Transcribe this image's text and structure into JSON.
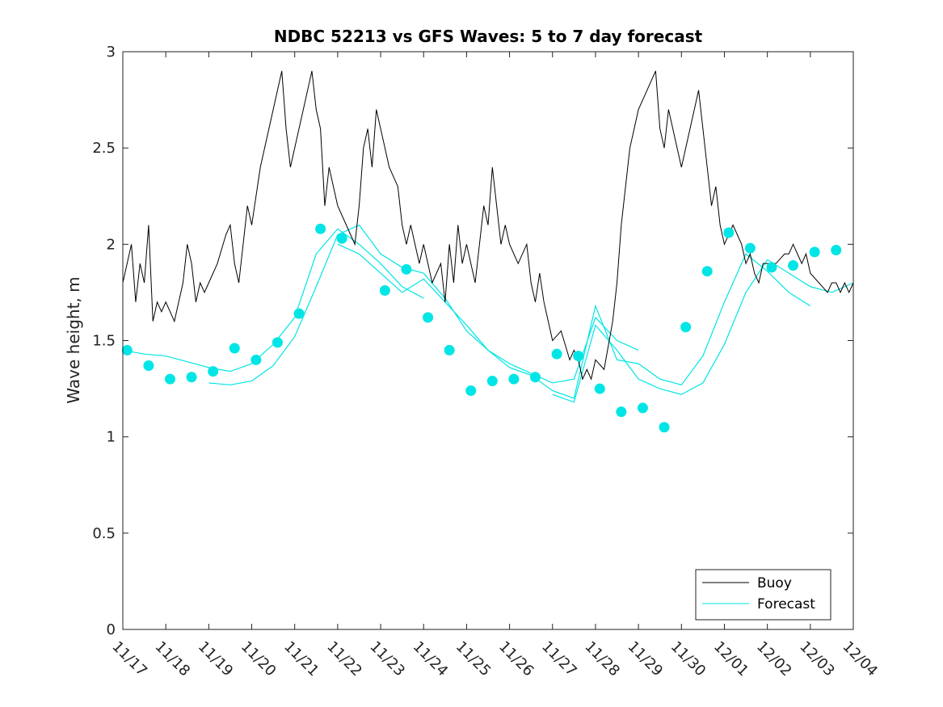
{
  "chart_data": {
    "type": "line",
    "title": "NDBC 52213 vs GFS Waves: 5 to 7 day forecast",
    "xlabel": "",
    "ylabel": "Wave height, m",
    "xlim": [
      0,
      17
    ],
    "ylim": [
      0,
      3
    ],
    "yticks": [
      0,
      0.5,
      1,
      1.5,
      2,
      2.5,
      3
    ],
    "ytick_labels": [
      "0",
      "0.5",
      "1",
      "1.5",
      "2",
      "2.5",
      "3"
    ],
    "xticks": [
      0,
      1,
      2,
      3,
      4,
      5,
      6,
      7,
      8,
      9,
      10,
      11,
      12,
      13,
      14,
      15,
      16,
      17
    ],
    "xtick_labels": [
      "11/17",
      "11/18",
      "11/19",
      "11/20",
      "11/21",
      "11/22",
      "11/23",
      "11/24",
      "11/25",
      "11/26",
      "11/27",
      "11/28",
      "11/29",
      "11/30",
      "12/01",
      "12/02",
      "12/03",
      "12/04"
    ],
    "legend": {
      "position": "bottom-right",
      "entries": [
        "Buoy",
        "Forecast"
      ]
    },
    "colors": {
      "buoy": "#000000",
      "forecast": "#00e5e5",
      "axes": "#222222"
    },
    "series": [
      {
        "name": "Buoy",
        "x": [
          0,
          0.1,
          0.2,
          0.3,
          0.4,
          0.5,
          0.6,
          0.7,
          0.8,
          0.9,
          1.0,
          1.2,
          1.4,
          1.5,
          1.6,
          1.7,
          1.8,
          1.9,
          2.0,
          2.2,
          2.4,
          2.5,
          2.6,
          2.7,
          2.8,
          2.9,
          3.0,
          3.2,
          3.4,
          3.5,
          3.6,
          3.7,
          3.8,
          3.9,
          4.0,
          4.2,
          4.4,
          4.5,
          4.6,
          4.7,
          4.8,
          4.9,
          5.0,
          5.2,
          5.4,
          5.5,
          5.6,
          5.7,
          5.8,
          5.9,
          6.0,
          6.2,
          6.4,
          6.5,
          6.6,
          6.7,
          6.8,
          6.9,
          7.0,
          7.2,
          7.4,
          7.5,
          7.6,
          7.7,
          7.8,
          7.9,
          8.0,
          8.2,
          8.4,
          8.5,
          8.6,
          8.7,
          8.8,
          8.9,
          9.0,
          9.2,
          9.4,
          9.5,
          9.6,
          9.7,
          9.8,
          9.9,
          10.0,
          10.2,
          10.4,
          10.5,
          10.6,
          10.7,
          10.8,
          10.9,
          11.0,
          11.2,
          11.4,
          11.5,
          11.6,
          11.7,
          11.8,
          11.9,
          12.0,
          12.2,
          12.4,
          12.5,
          12.6,
          12.7,
          12.8,
          12.9,
          13.0,
          13.2,
          13.4,
          13.5,
          13.6,
          13.7,
          13.8,
          13.9,
          14.0,
          14.2,
          14.4,
          14.5,
          14.6,
          14.7,
          14.8,
          14.9,
          15.0,
          15.2,
          15.4,
          15.5,
          15.6,
          15.7,
          15.8,
          15.9,
          16.0,
          16.2,
          16.4,
          16.5,
          16.6,
          16.7,
          16.8,
          16.9,
          17.0
        ],
        "y": [
          1.8,
          1.9,
          2.0,
          1.7,
          1.9,
          1.8,
          2.1,
          1.6,
          1.7,
          1.65,
          1.7,
          1.6,
          1.8,
          2.0,
          1.9,
          1.7,
          1.8,
          1.75,
          1.8,
          1.9,
          2.05,
          2.1,
          1.9,
          1.8,
          2.0,
          2.2,
          2.1,
          2.4,
          2.6,
          2.7,
          2.8,
          2.9,
          2.6,
          2.4,
          2.5,
          2.7,
          2.9,
          2.7,
          2.6,
          2.2,
          2.4,
          2.3,
          2.2,
          2.1,
          2.0,
          2.2,
          2.5,
          2.6,
          2.4,
          2.7,
          2.6,
          2.4,
          2.3,
          2.1,
          2.0,
          2.1,
          2.0,
          1.9,
          2.0,
          1.8,
          1.9,
          1.7,
          2.0,
          1.8,
          2.1,
          1.9,
          2.0,
          1.8,
          2.2,
          2.1,
          2.4,
          2.2,
          2.0,
          2.1,
          2.0,
          1.9,
          2.0,
          1.8,
          1.7,
          1.85,
          1.7,
          1.6,
          1.5,
          1.55,
          1.4,
          1.45,
          1.4,
          1.3,
          1.35,
          1.3,
          1.4,
          1.35,
          1.6,
          1.8,
          2.1,
          2.3,
          2.5,
          2.6,
          2.7,
          2.8,
          2.9,
          2.6,
          2.5,
          2.7,
          2.6,
          2.5,
          2.4,
          2.6,
          2.8,
          2.6,
          2.4,
          2.2,
          2.3,
          2.1,
          2.0,
          2.1,
          2.0,
          1.9,
          1.95,
          1.85,
          1.8,
          1.9,
          1.9,
          1.9,
          1.95,
          1.95,
          2.0,
          1.95,
          1.9,
          1.95,
          1.85,
          1.8,
          1.75,
          1.8,
          1.8,
          1.75,
          1.8,
          1.75,
          1.8
        ]
      },
      {
        "name": "Forecast",
        "points_x": [
          0.1,
          0.6,
          1.1,
          1.6,
          2.1,
          2.6,
          3.1,
          3.6,
          4.1,
          4.6,
          5.1,
          6.1,
          6.6,
          7.1,
          7.6,
          8.1,
          8.6,
          9.1,
          9.6,
          10.1,
          10.6,
          11.1,
          11.6,
          12.1,
          12.6,
          13.1,
          13.6,
          14.1,
          14.6,
          15.1,
          15.6,
          16.1,
          16.6
        ],
        "points_y": [
          1.45,
          1.37,
          1.3,
          1.31,
          1.34,
          1.46,
          1.4,
          1.49,
          1.64,
          2.08,
          2.03,
          1.76,
          1.87,
          1.62,
          1.45,
          1.24,
          1.29,
          1.3,
          1.31,
          1.43,
          1.42,
          1.25,
          1.13,
          1.15,
          1.05,
          1.57,
          1.86,
          2.06,
          1.98,
          1.88,
          1.89,
          1.96,
          1.97
        ]
      }
    ],
    "forecast_runs": [
      {
        "x": [
          0,
          0.5,
          1.0,
          1.5,
          2.0,
          2.5,
          3.0,
          3.5,
          4.0,
          4.5,
          5.0,
          5.5,
          6.0,
          6.5,
          7.0
        ],
        "y": [
          1.45,
          1.43,
          1.42,
          1.39,
          1.36,
          1.34,
          1.38,
          1.48,
          1.62,
          1.95,
          2.08,
          2.0,
          1.9,
          1.78,
          1.72
        ]
      },
      {
        "x": [
          2.0,
          2.5,
          3.0,
          3.5,
          4.0,
          4.5,
          5.0,
          5.5,
          6.0,
          6.5,
          7.0,
          7.5,
          8.0,
          8.5,
          9.0,
          9.5,
          10.0,
          10.5,
          11.0,
          11.5,
          12.0
        ],
        "y": [
          1.28,
          1.27,
          1.29,
          1.37,
          1.52,
          1.78,
          2.05,
          2.1,
          1.95,
          1.88,
          1.85,
          1.72,
          1.55,
          1.45,
          1.38,
          1.33,
          1.28,
          1.3,
          1.62,
          1.5,
          1.45
        ]
      },
      {
        "x": [
          5.0,
          5.5,
          6.0,
          6.5,
          7.0,
          7.5,
          8.0,
          8.5,
          9.0,
          9.5,
          10.0,
          10.5,
          11.0,
          11.5,
          12.0,
          12.5,
          13.0,
          13.5,
          14.0,
          14.5,
          15.0,
          15.5,
          16.0
        ],
        "y": [
          2.0,
          1.95,
          1.85,
          1.75,
          1.82,
          1.7,
          1.58,
          1.45,
          1.36,
          1.32,
          1.24,
          1.2,
          1.68,
          1.4,
          1.38,
          1.3,
          1.27,
          1.42,
          1.7,
          1.95,
          1.86,
          1.75,
          1.68
        ]
      },
      {
        "x": [
          10.0,
          10.5,
          11.0,
          11.5,
          12.0,
          12.5,
          13.0,
          13.5,
          14.0,
          14.5,
          15.0,
          15.5,
          16.0,
          16.5,
          17.0
        ],
        "y": [
          1.22,
          1.18,
          1.58,
          1.45,
          1.3,
          1.25,
          1.22,
          1.28,
          1.48,
          1.75,
          1.92,
          1.85,
          1.78,
          1.75,
          1.8
        ]
      }
    ]
  }
}
